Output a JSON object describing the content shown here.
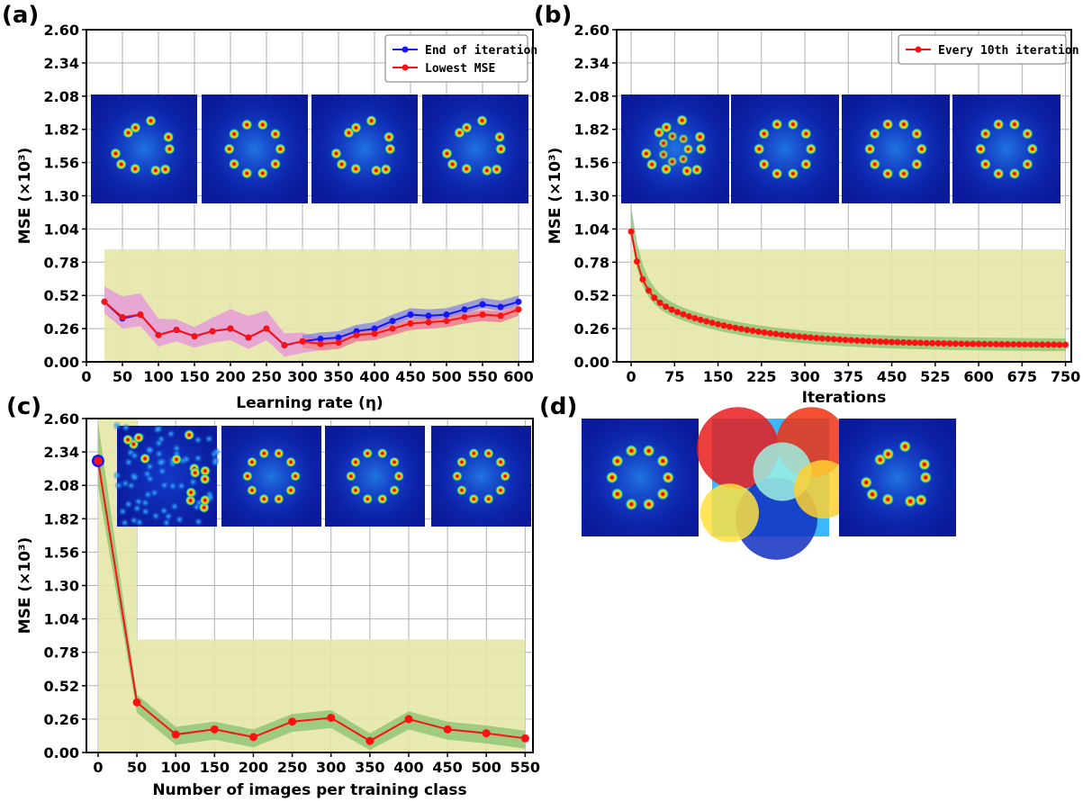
{
  "panels": {
    "a": "(a)",
    "b": "(b)",
    "c": "(c)",
    "d": "(d)"
  },
  "colors": {
    "blue": "#1414ff",
    "red": "#ff1010",
    "band_yellow": "#e6e6a8",
    "band_green": "#7fbf6a",
    "band_pink": "#e58ce0",
    "band_blue": "#7a7ae6",
    "band_red": "#f08080"
  },
  "chart_data": [
    {
      "id": "a",
      "type": "line",
      "xlabel": "Learning rate (η)",
      "ylabel": "MSE (×10³)",
      "xlim": [
        0,
        620
      ],
      "ylim": [
        0,
        2.6
      ],
      "xticks": [
        0,
        50,
        100,
        150,
        200,
        250,
        300,
        350,
        400,
        450,
        500,
        550,
        600
      ],
      "yticks": [
        "0.00",
        "0.26",
        "0.52",
        "0.78",
        "1.04",
        "1.30",
        "1.56",
        "1.82",
        "2.08",
        "2.34",
        "2.60"
      ],
      "legend": [
        "End of iteration",
        "Lowest MSE"
      ],
      "legend_position": "top-right",
      "yellow_band": {
        "x": [
          25,
          600
        ],
        "y": [
          0.0,
          0.88
        ]
      },
      "series": [
        {
          "name": "End of iteration",
          "color": "blue",
          "x": [
            25,
            50,
            75,
            100,
            125,
            150,
            175,
            200,
            225,
            250,
            275,
            300,
            325,
            350,
            375,
            400,
            425,
            450,
            475,
            500,
            525,
            550,
            575,
            600
          ],
          "y": [
            0.47,
            0.34,
            0.37,
            0.21,
            0.25,
            0.2,
            0.24,
            0.26,
            0.19,
            0.26,
            0.13,
            0.16,
            0.18,
            0.19,
            0.24,
            0.26,
            0.32,
            0.37,
            0.36,
            0.37,
            0.41,
            0.45,
            0.43,
            0.47
          ]
        },
        {
          "name": "Lowest MSE",
          "color": "red",
          "x": [
            25,
            50,
            75,
            100,
            125,
            150,
            175,
            200,
            225,
            250,
            275,
            300,
            325,
            350,
            375,
            400,
            425,
            450,
            475,
            500,
            525,
            550,
            575,
            600
          ],
          "y": [
            0.47,
            0.35,
            0.37,
            0.21,
            0.25,
            0.2,
            0.24,
            0.26,
            0.19,
            0.26,
            0.13,
            0.16,
            0.14,
            0.15,
            0.21,
            0.22,
            0.26,
            0.3,
            0.31,
            0.32,
            0.35,
            0.37,
            0.36,
            0.41
          ]
        }
      ]
    },
    {
      "id": "b",
      "type": "line",
      "xlabel": "Iterations",
      "ylabel": "MSE (×10³)",
      "xlim": [
        -25,
        760
      ],
      "ylim": [
        0,
        2.6
      ],
      "xticks": [
        0,
        75,
        150,
        225,
        300,
        375,
        450,
        525,
        600,
        675,
        750
      ],
      "yticks": [
        "0.00",
        "0.26",
        "0.52",
        "0.78",
        "1.04",
        "1.30",
        "1.56",
        "1.82",
        "2.08",
        "2.34",
        "2.60"
      ],
      "legend": [
        "Every 10th iteration"
      ],
      "legend_position": "top-right",
      "yellow_band": {
        "x": [
          0,
          750
        ],
        "y": [
          0.0,
          0.88
        ]
      },
      "series": [
        {
          "name": "Every 10th iteration",
          "color": "red",
          "step": 10,
          "start": 0,
          "end": 750,
          "model": {
            "y0": 1.02,
            "a": 0.47,
            "b": 0.42,
            "decay": 17,
            "plateau_drop": 0.00045
          }
        }
      ]
    },
    {
      "id": "c",
      "type": "line",
      "xlabel": "Number of images per training class",
      "ylabel": "MSE (×10³)",
      "xlim": [
        -15,
        560
      ],
      "ylim": [
        0,
        2.6
      ],
      "xticks": [
        0,
        50,
        100,
        150,
        200,
        250,
        300,
        350,
        400,
        450,
        500,
        550
      ],
      "yticks": [
        "0.00",
        "0.26",
        "0.52",
        "0.78",
        "1.04",
        "1.30",
        "1.56",
        "1.82",
        "2.08",
        "2.34",
        "2.60"
      ],
      "yellow_band": {
        "x": [
          0,
          550
        ],
        "y": [
          0.0,
          0.88
        ],
        "x_first": [
          0,
          50
        ],
        "y_first": [
          0.88,
          2.6
        ]
      },
      "series": [
        {
          "name": "MSE",
          "color": "red",
          "x": [
            0,
            50,
            100,
            150,
            200,
            250,
            300,
            350,
            400,
            450,
            500,
            550
          ],
          "y": [
            2.27,
            0.39,
            0.14,
            0.18,
            0.12,
            0.24,
            0.27,
            0.09,
            0.26,
            0.18,
            0.15,
            0.11
          ]
        }
      ],
      "highlight_point": {
        "x": 0,
        "y": 2.27,
        "color": "blue"
      }
    }
  ],
  "images": {
    "a": [
      "ring-pattern-distorted",
      "ring-pattern-clean",
      "ring-pattern-distorted",
      "ring-pattern-distorted"
    ],
    "b": [
      "ring-pattern-noisy",
      "ring-pattern-clean",
      "ring-pattern-clean",
      "ring-pattern-clean"
    ],
    "c": [
      "speckle-noise",
      "ring-pattern-clean",
      "ring-pattern-clean",
      "ring-pattern-clean"
    ],
    "d": [
      "ring-pattern-target",
      "phase-mask",
      "ring-pattern-reconstructed"
    ]
  }
}
